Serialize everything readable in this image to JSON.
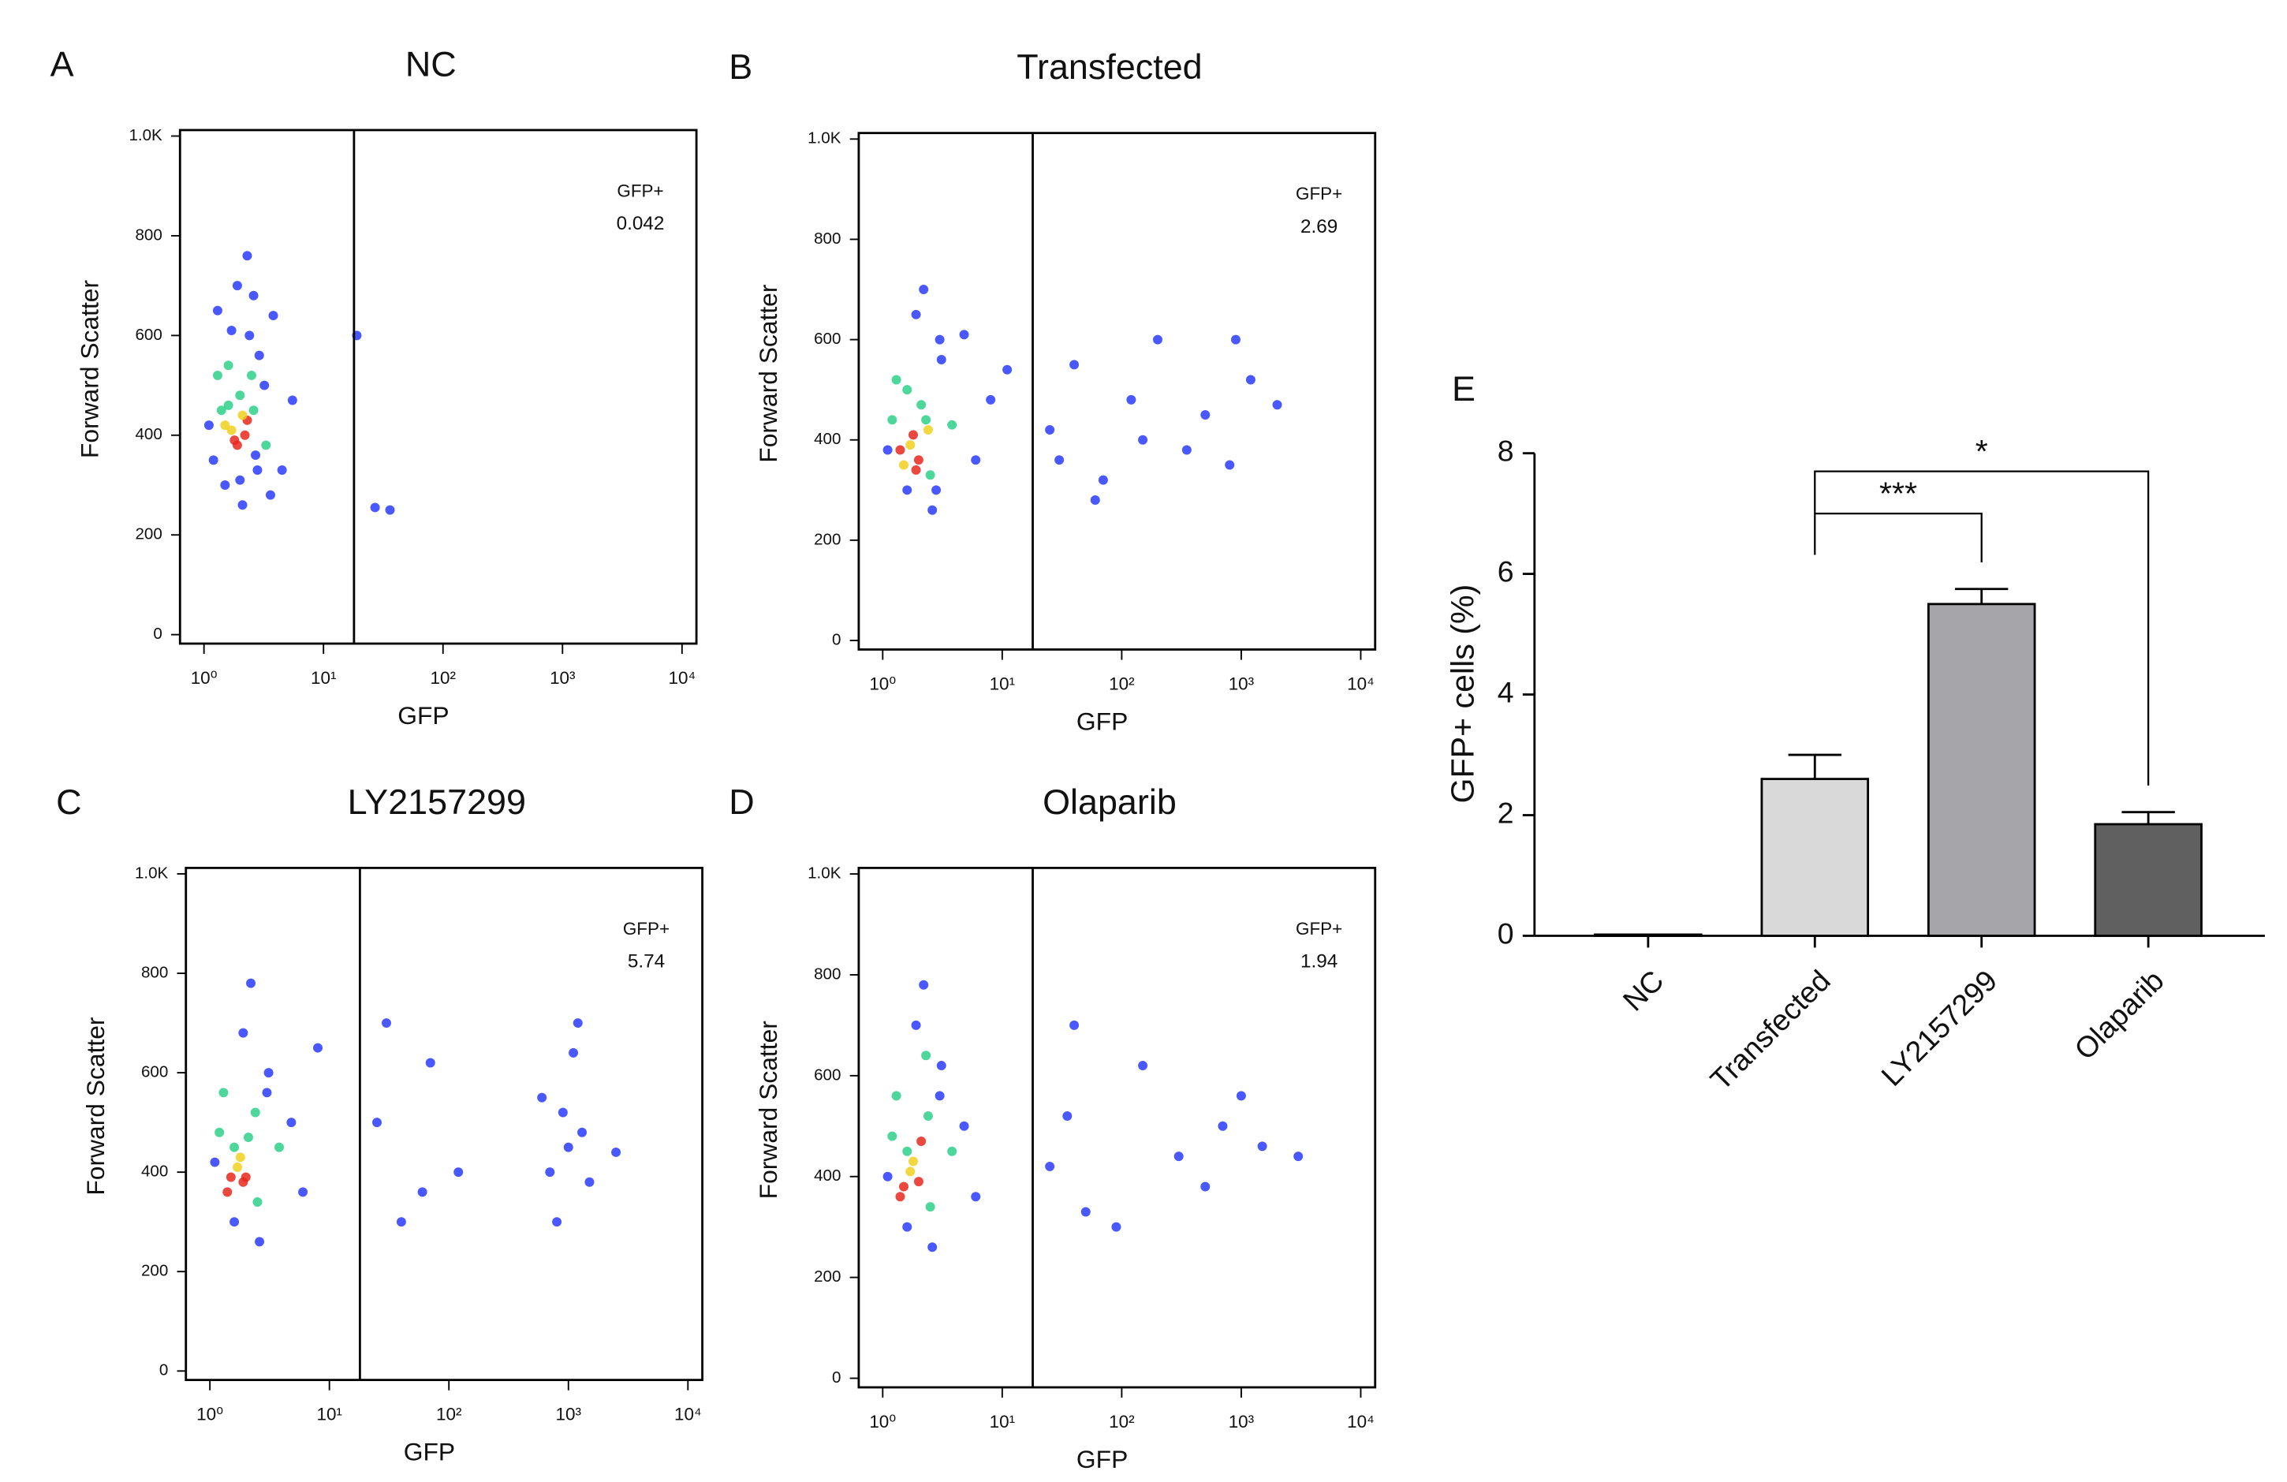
{
  "chart_data": [
    {
      "type": "scatter",
      "panel": "A",
      "title": "NC",
      "xlabel": "GFP",
      "ylabel": "Forward Scatter",
      "log_x": true,
      "xlim": [
        0.63,
        13200
      ],
      "ylim": [
        -18,
        1012
      ],
      "xticks": [
        {
          "value": 1,
          "label": "10⁰"
        },
        {
          "value": 10,
          "label": "10¹"
        },
        {
          "value": 100,
          "label": "10²"
        },
        {
          "value": 1000,
          "label": "10³"
        },
        {
          "value": 10000,
          "label": "10⁴"
        }
      ],
      "yticks": [
        0,
        200,
        400,
        600,
        800,
        {
          "value": 1000,
          "label": "1.0K"
        }
      ],
      "gate": 18,
      "gate_label": "GFP+",
      "gate_value": 0.042,
      "x": [
        1.1,
        1.3,
        1.5,
        1.7,
        1.9,
        2.1,
        2.3,
        2.6,
        2.9,
        3.3,
        3.8,
        4.5,
        5.5,
        1.2,
        1.4,
        1.6,
        1.8,
        2.0,
        2.2,
        2.4,
        2.8,
        3.2,
        1.5,
        1.9,
        2.3,
        2.7,
        1.7,
        2.1,
        2.5,
        1.3,
        3.6,
        2.0,
        2.6,
        1.6,
        19,
        27,
        36
      ],
      "y": [
        420,
        520,
        300,
        610,
        700,
        260,
        760,
        450,
        560,
        380,
        640,
        330,
        470,
        350,
        450,
        540,
        390,
        480,
        400,
        600,
        330,
        500,
        420,
        380,
        430,
        360,
        410,
        440,
        520,
        650,
        280,
        310,
        680,
        460,
        600,
        255,
        250
      ],
      "colors": [
        "#2a3cff",
        "#2fd08a",
        "#2a3cff",
        "#2a3cff",
        "#2a3cff",
        "#2a3cff",
        "#2a3cff",
        "#2fd08a",
        "#2a3cff",
        "#2fd08a",
        "#2a3cff",
        "#2a3cff",
        "#2a3cff",
        "#2a3cff",
        "#2fd08a",
        "#2fd08a",
        "#e8281e",
        "#2fd08a",
        "#e8281e",
        "#2a3cff",
        "#2a3cff",
        "#2a3cff",
        "#f0d020",
        "#e8281e",
        "#e8281e",
        "#2a3cff",
        "#f0d020",
        "#f0d020",
        "#2fd08a",
        "#2a3cff",
        "#2a3cff",
        "#2a3cff",
        "#2a3cff",
        "#2fd08a",
        "#2a3cff",
        "#2a3cff",
        "#2a3cff"
      ]
    },
    {
      "type": "scatter",
      "panel": "B",
      "title": "Transfected",
      "xlabel": "GFP",
      "ylabel": "Forward Scatter",
      "log_x": true,
      "xlim": [
        0.63,
        13200
      ],
      "ylim": [
        -18,
        1012
      ],
      "xticks": [
        {
          "value": 1,
          "label": "10⁰"
        },
        {
          "value": 10,
          "label": "10¹"
        },
        {
          "value": 100,
          "label": "10²"
        },
        {
          "value": 1000,
          "label": "10³"
        },
        {
          "value": 10000,
          "label": "10⁴"
        }
      ],
      "yticks": [
        0,
        200,
        400,
        600,
        800,
        {
          "value": 1000,
          "label": "1.0K"
        }
      ],
      "gate": 18,
      "gate_label": "GFP+",
      "gate_value": 2.69,
      "x": [
        1.1,
        1.3,
        1.6,
        1.9,
        2.2,
        2.6,
        3.1,
        3.8,
        4.8,
        6,
        8,
        11,
        1.2,
        1.5,
        1.8,
        2.1,
        2.5,
        3,
        1.4,
        1.7,
        2.0,
        2.4,
        1.6,
        1.9,
        2.3,
        2.8,
        25,
        40,
        70,
        120,
        200,
        350,
        500,
        800,
        1200,
        2000,
        60,
        150,
        900,
        30
      ],
      "y": [
        380,
        520,
        300,
        650,
        700,
        260,
        560,
        430,
        610,
        360,
        480,
        540,
        440,
        350,
        410,
        470,
        330,
        600,
        380,
        390,
        360,
        420,
        500,
        340,
        440,
        300,
        420,
        550,
        320,
        480,
        600,
        380,
        450,
        350,
        520,
        470,
        280,
        400,
        600,
        360
      ],
      "colors": [
        "#2a3cff",
        "#2fd08a",
        "#2a3cff",
        "#2a3cff",
        "#2a3cff",
        "#2a3cff",
        "#2a3cff",
        "#2fd08a",
        "#2a3cff",
        "#2a3cff",
        "#2a3cff",
        "#2a3cff",
        "#2fd08a",
        "#f0d020",
        "#e8281e",
        "#2fd08a",
        "#2fd08a",
        "#2a3cff",
        "#e8281e",
        "#f0d020",
        "#e8281e",
        "#f0d020",
        "#2fd08a",
        "#e8281e",
        "#2fd08a",
        "#2a3cff",
        "#2a3cff",
        "#2a3cff",
        "#2a3cff",
        "#2a3cff",
        "#2a3cff",
        "#2a3cff",
        "#2a3cff",
        "#2a3cff",
        "#2a3cff",
        "#2a3cff",
        "#2a3cff",
        "#2a3cff",
        "#2a3cff",
        "#2a3cff"
      ]
    },
    {
      "type": "scatter",
      "panel": "C",
      "title": "LY2157299",
      "xlabel": "GFP",
      "ylabel": "Forward Scatter",
      "log_x": true,
      "xlim": [
        0.63,
        13200
      ],
      "ylim": [
        -18,
        1012
      ],
      "xticks": [
        {
          "value": 1,
          "label": "10⁰"
        },
        {
          "value": 10,
          "label": "10¹"
        },
        {
          "value": 100,
          "label": "10²"
        },
        {
          "value": 1000,
          "label": "10³"
        },
        {
          "value": 10000,
          "label": "10⁴"
        }
      ],
      "yticks": [
        0,
        200,
        400,
        600,
        800,
        {
          "value": 1000,
          "label": "1.0K"
        }
      ],
      "gate": 18,
      "gate_label": "GFP+",
      "gate_value": 5.74,
      "x": [
        1.1,
        1.3,
        1.6,
        1.9,
        2.2,
        2.6,
        3.1,
        3.8,
        4.8,
        6,
        8,
        1.2,
        1.5,
        1.8,
        2.1,
        2.5,
        3,
        1.4,
        1.7,
        2.0,
        2.4,
        1.6,
        1.9,
        25,
        40,
        70,
        120,
        600,
        800,
        1000,
        1200,
        1500,
        900,
        1100,
        700,
        1300,
        2500,
        30,
        60
      ],
      "y": [
        420,
        560,
        300,
        680,
        780,
        260,
        600,
        450,
        500,
        360,
        650,
        480,
        390,
        430,
        470,
        340,
        560,
        360,
        410,
        390,
        520,
        450,
        380,
        500,
        300,
        620,
        400,
        550,
        300,
        450,
        700,
        380,
        520,
        640,
        400,
        480,
        440,
        700,
        360
      ],
      "colors": [
        "#2a3cff",
        "#2fd08a",
        "#2a3cff",
        "#2a3cff",
        "#2a3cff",
        "#2a3cff",
        "#2a3cff",
        "#2fd08a",
        "#2a3cff",
        "#2a3cff",
        "#2a3cff",
        "#2fd08a",
        "#e8281e",
        "#f0d020",
        "#2fd08a",
        "#2fd08a",
        "#2a3cff",
        "#e8281e",
        "#f0d020",
        "#e8281e",
        "#2fd08a",
        "#2fd08a",
        "#e8281e",
        "#2a3cff",
        "#2a3cff",
        "#2a3cff",
        "#2a3cff",
        "#2a3cff",
        "#2a3cff",
        "#2a3cff",
        "#2a3cff",
        "#2a3cff",
        "#2a3cff",
        "#2a3cff",
        "#2a3cff",
        "#2a3cff",
        "#2a3cff",
        "#2a3cff",
        "#2a3cff"
      ]
    },
    {
      "type": "scatter",
      "panel": "D",
      "title": "Olaparib",
      "xlabel": "GFP",
      "ylabel": "Forward Scatter",
      "log_x": true,
      "xlim": [
        0.63,
        13200
      ],
      "ylim": [
        -18,
        1012
      ],
      "xticks": [
        {
          "value": 1,
          "label": "10⁰"
        },
        {
          "value": 10,
          "label": "10¹"
        },
        {
          "value": 100,
          "label": "10²"
        },
        {
          "value": 1000,
          "label": "10³"
        },
        {
          "value": 10000,
          "label": "10⁴"
        }
      ],
      "yticks": [
        0,
        200,
        400,
        600,
        800,
        {
          "value": 1000,
          "label": "1.0K"
        }
      ],
      "gate": 18,
      "gate_label": "GFP+",
      "gate_value": 1.94,
      "x": [
        1.1,
        1.3,
        1.6,
        1.9,
        2.2,
        2.6,
        3.1,
        3.8,
        4.8,
        6,
        1.2,
        1.5,
        1.8,
        2.1,
        2.5,
        3,
        1.4,
        1.7,
        2.0,
        2.4,
        1.6,
        2.3,
        25,
        35,
        50,
        90,
        150,
        300,
        500,
        700,
        1000,
        1500,
        3000,
        40
      ],
      "y": [
        400,
        560,
        300,
        700,
        780,
        260,
        620,
        450,
        500,
        360,
        480,
        380,
        430,
        470,
        340,
        560,
        360,
        410,
        390,
        520,
        450,
        640,
        420,
        520,
        330,
        300,
        620,
        440,
        380,
        500,
        560,
        460,
        440,
        700
      ],
      "colors": [
        "#2a3cff",
        "#2fd08a",
        "#2a3cff",
        "#2a3cff",
        "#2a3cff",
        "#2a3cff",
        "#2a3cff",
        "#2fd08a",
        "#2a3cff",
        "#2a3cff",
        "#2fd08a",
        "#e8281e",
        "#f0d020",
        "#e8281e",
        "#2fd08a",
        "#2a3cff",
        "#e8281e",
        "#f0d020",
        "#e8281e",
        "#2fd08a",
        "#2fd08a",
        "#2fd08a",
        "#2a3cff",
        "#2a3cff",
        "#2a3cff",
        "#2a3cff",
        "#2a3cff",
        "#2a3cff",
        "#2a3cff",
        "#2a3cff",
        "#2a3cff",
        "#2a3cff",
        "#2a3cff",
        "#2a3cff"
      ]
    },
    {
      "type": "bar",
      "panel": "E",
      "ylabel": "GFP+ cells (%)",
      "categories": [
        "NC",
        "Transfected",
        "LY2157299",
        "Olaparib"
      ],
      "values": [
        0.02,
        2.6,
        5.5,
        1.85
      ],
      "errors": [
        0,
        0.4,
        0.25,
        0.2
      ],
      "colors": [
        "#ffffff",
        "#d9d9d9",
        "#a6a6aa",
        "#606060"
      ],
      "ylim": [
        0,
        8
      ],
      "yticks": [
        0,
        2,
        4,
        6,
        8
      ],
      "significance": [
        {
          "from": 1,
          "to": 2,
          "label": "***",
          "y": 7.0
        },
        {
          "from": 1,
          "to": 3,
          "label": "*",
          "y": 7.7
        }
      ]
    }
  ]
}
